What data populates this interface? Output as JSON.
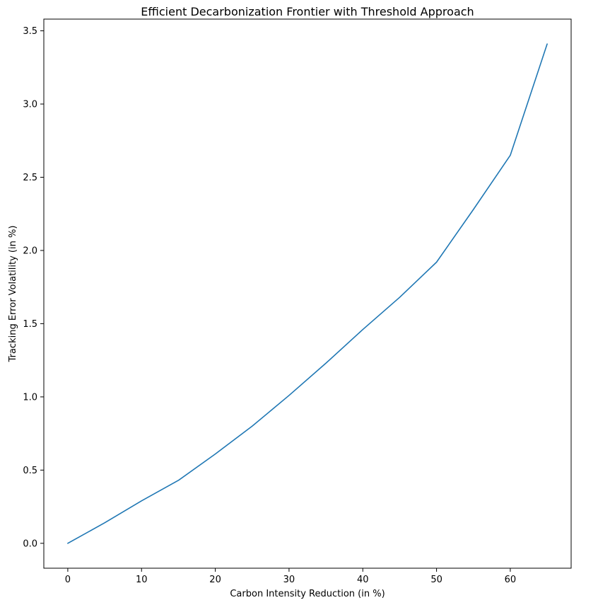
{
  "chart_data": {
    "type": "line",
    "title": "Efficient Decarbonization Frontier with Threshold Approach",
    "xlabel": "Carbon Intensity Reduction (in %)",
    "ylabel": "Tracking Error Volatility (in %)",
    "xlim": [
      -3.25,
      68.25
    ],
    "ylim": [
      -0.17,
      3.58
    ],
    "xticks": [
      0,
      10,
      20,
      30,
      40,
      50,
      60
    ],
    "xtick_labels": [
      "0",
      "10",
      "20",
      "30",
      "40",
      "50",
      "60"
    ],
    "yticks": [
      0.0,
      0.5,
      1.0,
      1.5,
      2.0,
      2.5,
      3.0,
      3.5
    ],
    "ytick_labels": [
      "0.0",
      "0.5",
      "1.0",
      "1.5",
      "2.0",
      "2.5",
      "3.0",
      "3.5"
    ],
    "grid": false,
    "series": [
      {
        "color": "#1f77b4",
        "x": [
          0,
          5,
          10,
          15,
          20,
          25,
          30,
          35,
          40,
          45,
          50,
          55,
          60,
          65
        ],
        "y": [
          0.0,
          0.14,
          0.29,
          0.43,
          0.61,
          0.8,
          1.01,
          1.23,
          1.46,
          1.68,
          1.92,
          2.28,
          2.65,
          3.41
        ]
      }
    ]
  }
}
